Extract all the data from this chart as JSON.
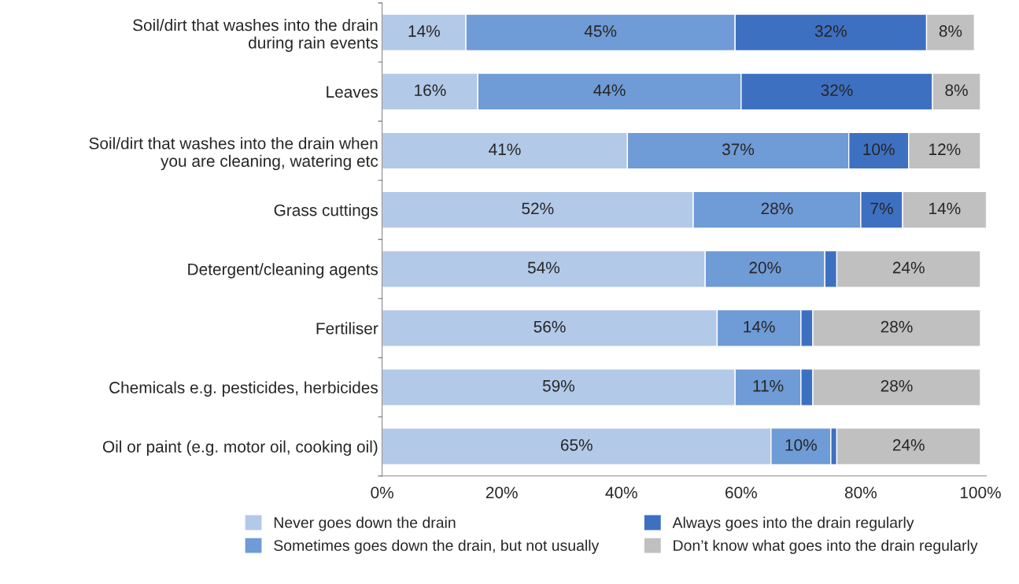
{
  "chart_data": {
    "type": "bar",
    "orientation": "horizontal",
    "stacked": true,
    "categories": [
      "Soil/dirt that washes into the drain\nduring rain events",
      "Leaves",
      "Soil/dirt that washes into the drain when\nyou are cleaning, watering etc",
      "Grass cuttings",
      "Detergent/cleaning agents",
      "Fertiliser",
      "Chemicals e.g. pesticides, herbicides",
      "Oil or paint (e.g. motor oil, cooking oil)"
    ],
    "series": [
      {
        "name": "Never goes down the drain",
        "color": "#b3c9e8",
        "values": [
          14,
          16,
          41,
          52,
          54,
          56,
          59,
          65
        ],
        "value_labels": [
          "14%",
          "16%",
          "41%",
          "52%",
          "54%",
          "56%",
          "59%",
          "65%"
        ]
      },
      {
        "name": "Sometimes goes down the drain, but not usually",
        "color": "#6f9bd6",
        "values": [
          45,
          44,
          37,
          28,
          20,
          14,
          11,
          10
        ],
        "value_labels": [
          "45%",
          "44%",
          "37%",
          "28%",
          "20%",
          "14%",
          "11%",
          "10%"
        ]
      },
      {
        "name": "Always goes into the drain regularly",
        "color": "#3e70c2",
        "values": [
          32,
          32,
          10,
          7,
          2,
          2,
          2,
          1
        ],
        "value_labels": [
          "32%",
          "32%",
          "10%",
          "7%",
          null,
          null,
          null,
          null
        ]
      },
      {
        "name": "Don’t know what goes into the drain regularly",
        "color": "#c0c0c0",
        "values": [
          8,
          8,
          12,
          14,
          24,
          28,
          28,
          24
        ],
        "value_labels": [
          "8%",
          "8%",
          "12%",
          "14%",
          "24%",
          "28%",
          "28%",
          "24%"
        ]
      }
    ],
    "xlim": [
      0,
      101
    ],
    "xticks": [
      {
        "value": 0,
        "label": "0%"
      },
      {
        "value": 20,
        "label": "20%"
      },
      {
        "value": 40,
        "label": "40%"
      },
      {
        "value": 60,
        "label": "60%"
      },
      {
        "value": 80,
        "label": "80%"
      },
      {
        "value": 100,
        "label": "100%"
      }
    ],
    "grid": false,
    "legend": "bottom"
  }
}
